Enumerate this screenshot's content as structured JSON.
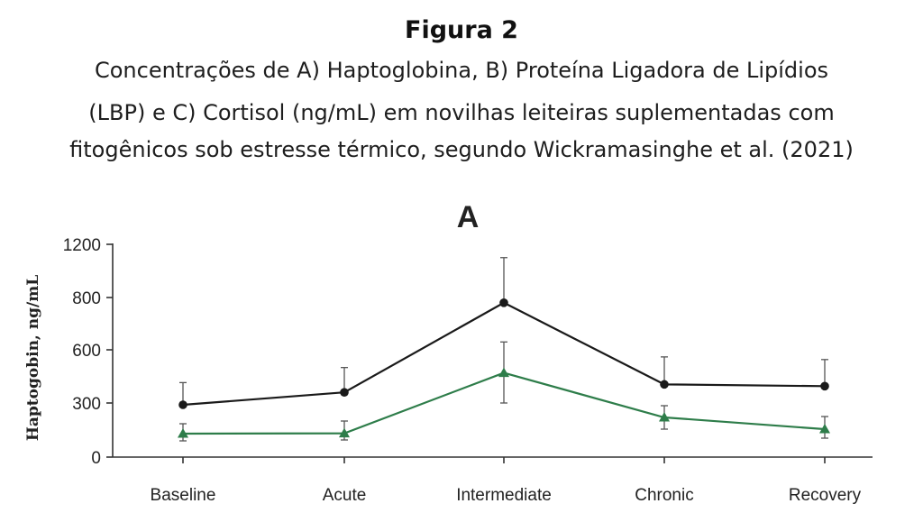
{
  "figure": {
    "title": "Figura 2",
    "caption_lines": [
      "Concentrações de A) Haptoglobina, B) Proteína Ligadora de Lipídios",
      "(LBP) e C) Cortisol (ng/mL) em novilhas leiteiras suplementadas com",
      "fitogênicos sob estresse térmico, segundo Wickramasinghe et al. (2021)"
    ]
  },
  "chart_data": {
    "type": "line",
    "title": "A",
    "ylabel": "Haptogobin, ng/mL",
    "xlabel": "",
    "categories": [
      "Baseline",
      "Acute",
      "Intermediate",
      "Chronic",
      "Recovery"
    ],
    "yticks": [
      0,
      300,
      600,
      800,
      1200
    ],
    "yticks_labels": [
      "0",
      "300",
      "600",
      "800",
      "1200"
    ],
    "grid": false,
    "legend": "none",
    "series": [
      {
        "color": "#1a1a1a",
        "marker": "circle",
        "values": [
          290,
          360,
          780,
          405,
          395
        ],
        "error_upper": [
          415,
          500,
          1100,
          560,
          545
        ]
      },
      {
        "color": "#2e7d4a",
        "marker": "triangle",
        "values": [
          130,
          132,
          470,
          220,
          155
        ],
        "error_upper": [
          185,
          200,
          630,
          285,
          225
        ],
        "error_lower": [
          90,
          95,
          300,
          155,
          105
        ]
      }
    ]
  }
}
